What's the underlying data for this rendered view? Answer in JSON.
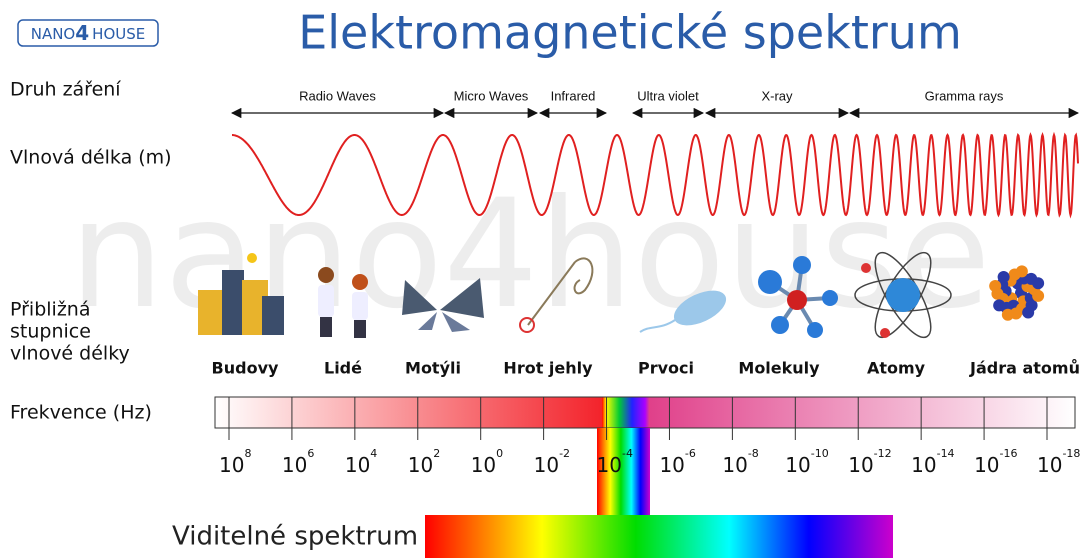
{
  "logo": {
    "left": "NANO",
    "digit": "4",
    "right": "HOUSE"
  },
  "title": "Elektromagnetické spektrum",
  "watermark": "nano4house",
  "row_labels": {
    "radiation_type": "Druh záření",
    "wavelength": "Vlnová délka (m)",
    "scale": [
      "Přibližná",
      "stupnice",
      "vlnové délky"
    ],
    "frequency": "Frekvence (Hz)"
  },
  "radiation_types": [
    "Radio Waves",
    "Micro Waves",
    "Infrared",
    "Ultra violet",
    "X-ray",
    "Gramma rays"
  ],
  "scale_items": [
    "Budovy",
    "Lidé",
    "Motýli",
    "Hrot jehly",
    "Prvoci",
    "Molekuly",
    "Atomy",
    "Jádra atomů"
  ],
  "frequency_ticks": [
    {
      "base": "10",
      "exponent": "8"
    },
    {
      "base": "10",
      "exponent": "6"
    },
    {
      "base": "10",
      "exponent": "4"
    },
    {
      "base": "10",
      "exponent": "2"
    },
    {
      "base": "10",
      "exponent": "0"
    },
    {
      "base": "10",
      "exponent": "-2"
    },
    {
      "base": "10",
      "exponent": "-4"
    },
    {
      "base": "10",
      "exponent": "-6"
    },
    {
      "base": "10",
      "exponent": "-8"
    },
    {
      "base": "10",
      "exponent": "-10"
    },
    {
      "base": "10",
      "exponent": "-12"
    },
    {
      "base": "10",
      "exponent": "-14"
    },
    {
      "base": "10",
      "exponent": "-16"
    },
    {
      "base": "10",
      "exponent": "-18"
    }
  ],
  "visible_spectrum": "Viditelné spektrum"
}
